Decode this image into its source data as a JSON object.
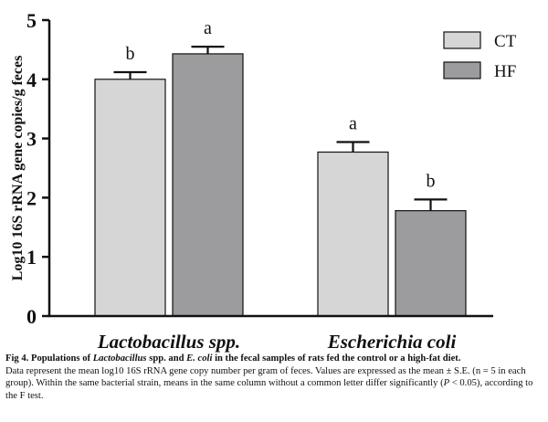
{
  "chart_data": {
    "type": "bar",
    "ylabel": "Log10 16S rRNA gene copies/g feces",
    "ylim": [
      0,
      5
    ],
    "yticks": [
      "0",
      "1",
      "2",
      "3",
      "4",
      "5"
    ],
    "categories": [
      "Lactobacillus spp.",
      "Escherichia coli"
    ],
    "series": [
      {
        "name": "CT",
        "values": [
          4.0,
          2.77
        ],
        "errors": [
          0.12,
          0.17
        ],
        "letters": [
          "b",
          "a"
        ],
        "color": "#d6d6d6"
      },
      {
        "name": "HF",
        "values": [
          4.43,
          1.78
        ],
        "errors": [
          0.12,
          0.19
        ],
        "letters": [
          "a",
          "b"
        ],
        "color": "#9c9c9e"
      }
    ],
    "legend_position": "top-right"
  },
  "caption": {
    "fig_label": "Fig 4.",
    "title_part1": "Populations of",
    "title_italic1": "Lactobacillus",
    "title_part2": "spp. and",
    "title_italic2": "E. coli",
    "title_part3": "in the fecal samples of rats fed the control or a high-fat diet.",
    "body_part1": "Data represent the mean log10 16S rRNA gene copy number per gram of feces. Values are expressed as the mean ± S.E. (n = 5 in each group). Within the same bacterial strain, means in the same column without a common letter differ significantly (",
    "body_p": "P",
    "body_part2": "< 0.05), according to the F test."
  }
}
